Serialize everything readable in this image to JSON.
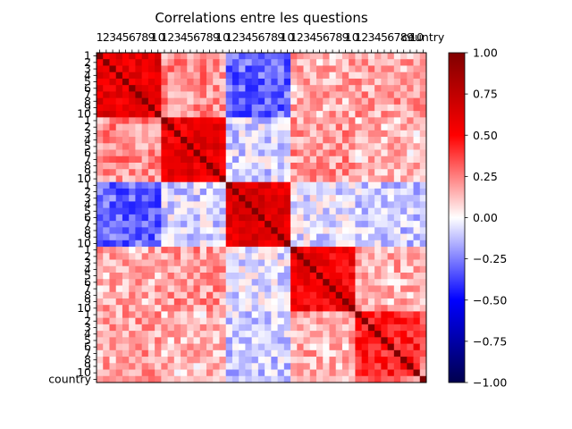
{
  "chart_data": {
    "type": "heatmap",
    "title": "Correlations entre les questions",
    "xlabel": "",
    "ylabel": "",
    "labels": [
      "1",
      "2",
      "3",
      "4",
      "5",
      "6",
      "7",
      "8",
      "9",
      "10",
      "1",
      "2",
      "3",
      "4",
      "5",
      "6",
      "7",
      "8",
      "9",
      "10",
      "1",
      "2",
      "3",
      "4",
      "5",
      "6",
      "7",
      "8",
      "9",
      "10",
      "1",
      "2",
      "3",
      "4",
      "5",
      "6",
      "7",
      "8",
      "9",
      "10",
      "1",
      "2",
      "3",
      "4",
      "5",
      "6",
      "7",
      "8",
      "9",
      "10",
      "country"
    ],
    "blocks": [
      {
        "within_mean": 0.6
      },
      {
        "within_mean": 0.58
      },
      {
        "within_mean": 0.62
      },
      {
        "within_mean": 0.55
      },
      {
        "within_mean": 0.45
      }
    ],
    "between_block_means": [
      [
        null,
        0.22,
        -0.3,
        0.15,
        0.18
      ],
      [
        0.22,
        null,
        -0.08,
        0.2,
        0.12
      ],
      [
        -0.3,
        -0.08,
        null,
        -0.05,
        -0.1
      ],
      [
        0.15,
        0.2,
        -0.05,
        null,
        0.15
      ],
      [
        0.18,
        0.12,
        -0.1,
        0.15,
        null
      ]
    ],
    "country_correlations": [
      0.2,
      0.25,
      0.22,
      0.18,
      0.24,
      0.2,
      0.26,
      0.22,
      0.3,
      0.28,
      0.12,
      0.1,
      0.15,
      0.08,
      0.1,
      0.14,
      0.12,
      0.1,
      0.06,
      0.12,
      -0.1,
      -0.15,
      -0.05,
      -0.12,
      -0.08,
      -0.1,
      -0.14,
      -0.06,
      -0.12,
      -0.2,
      0.1,
      0.15,
      0.12,
      0.2,
      0.1,
      0.15,
      0.12,
      0.1,
      0.05,
      0.14,
      0.3,
      0.28,
      0.35,
      0.4,
      0.32,
      0.3,
      0.36,
      0.25,
      0.2,
      0.15,
      1.0
    ],
    "diagonal": 1.0,
    "colormap": "seismic",
    "colorbar": {
      "min": -1.0,
      "max": 1.0,
      "ticks": [
        "1.00",
        "0.75",
        "0.50",
        "0.25",
        "0.00",
        "−0.25",
        "−0.50",
        "−0.75",
        "−1.00"
      ]
    },
    "grid": false,
    "legend": "none"
  }
}
